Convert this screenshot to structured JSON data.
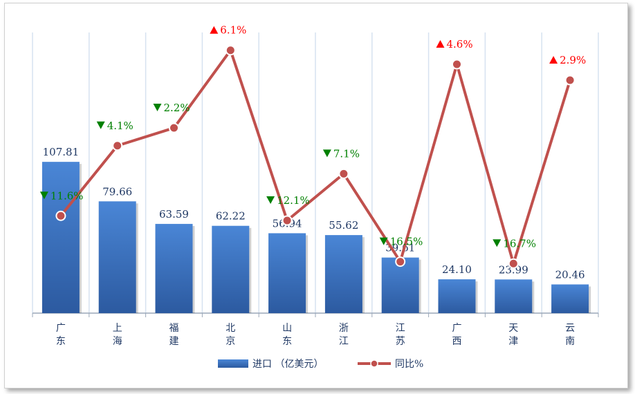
{
  "chart_data": {
    "type": "bar+line",
    "categories": [
      "广东",
      "上海",
      "福建",
      "北京",
      "山东",
      "浙江",
      "江苏",
      "广西",
      "天津",
      "云南"
    ],
    "series": [
      {
        "name": "进口 （亿美元）",
        "type": "bar",
        "values": [
          107.81,
          79.66,
          63.59,
          62.22,
          56.94,
          55.62,
          39.61,
          24.1,
          23.99,
          20.46
        ],
        "labels": [
          "107.81",
          "79.66",
          "63.59",
          "62.22",
          "56.94",
          "55.62",
          "39.61",
          "24.10",
          "23.99",
          "20.46"
        ]
      },
      {
        "name": "同比%",
        "type": "line",
        "values": [
          -11.6,
          -4.1,
          -2.2,
          6.1,
          -12.1,
          -7.1,
          -16.5,
          4.6,
          -16.7,
          2.9
        ],
        "labels": [
          "11.6%",
          "4.1%",
          "2.2%",
          "6.1%",
          "12.1%",
          "7.1%",
          "16.5%",
          "4.6%",
          "16.7%",
          "2.9%"
        ]
      }
    ],
    "bar_ylim": [
      0,
      200
    ],
    "line_ylim": [
      -22,
      8
    ],
    "grid": "vertical",
    "legend": "bottom",
    "colors": {
      "bar": "#3f74c4",
      "line": "#c0504d",
      "up": "#ff0000",
      "down": "#008000",
      "text": "#1f3864"
    }
  }
}
